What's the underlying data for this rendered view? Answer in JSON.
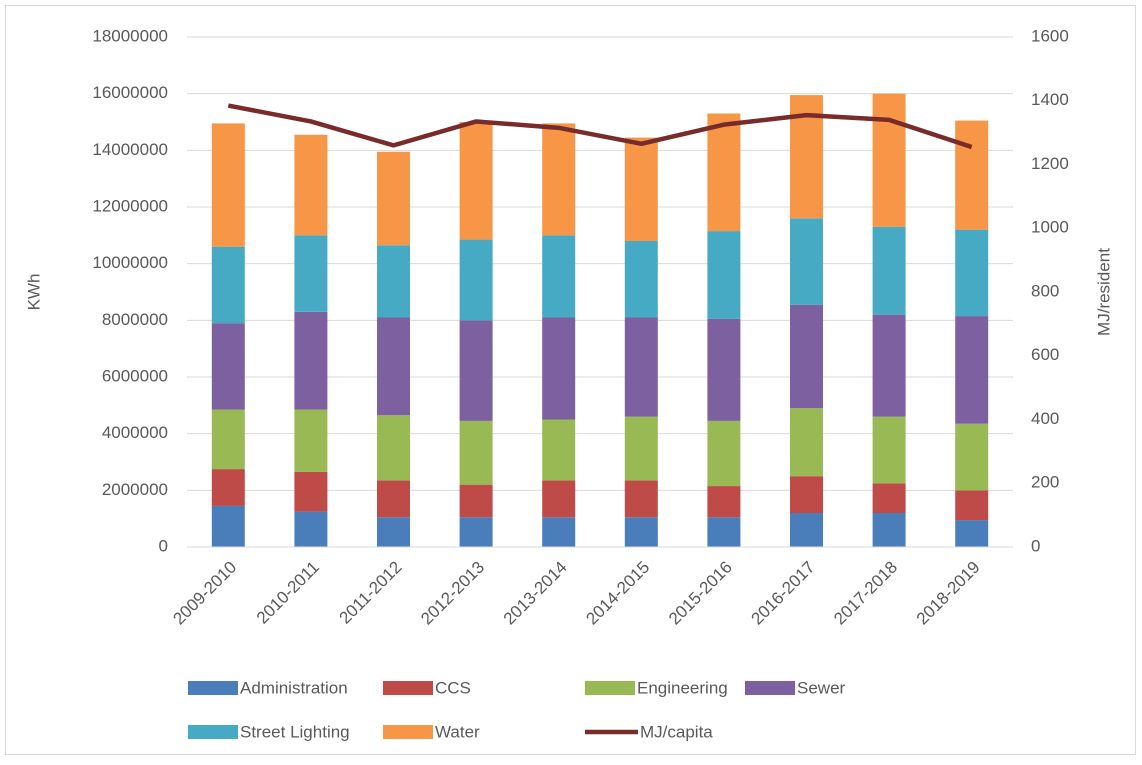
{
  "chart_data": {
    "type": "bar",
    "stacked": true,
    "categories": [
      "2009-2010",
      "2010-2011",
      "2011-2012",
      "2012-2013",
      "2013-2014",
      "2014-2015",
      "2015-2016",
      "2016-2017",
      "2017-2018",
      "2018-2019"
    ],
    "series": [
      {
        "name": "Administration",
        "color": "#4a7ebb",
        "values": [
          1450000,
          1250000,
          1050000,
          1050000,
          1050000,
          1050000,
          1050000,
          1200000,
          1200000,
          950000
        ]
      },
      {
        "name": "CCS",
        "color": "#be4b48",
        "values": [
          1300000,
          1400000,
          1300000,
          1150000,
          1300000,
          1300000,
          1100000,
          1300000,
          1050000,
          1050000
        ]
      },
      {
        "name": "Engineering",
        "color": "#98b954",
        "values": [
          2100000,
          2200000,
          2300000,
          2250000,
          2150000,
          2250000,
          2300000,
          2400000,
          2350000,
          2350000
        ]
      },
      {
        "name": "Sewer",
        "color": "#7d60a0",
        "values": [
          3050000,
          3450000,
          3450000,
          3550000,
          3600000,
          3500000,
          3600000,
          3650000,
          3600000,
          3800000
        ]
      },
      {
        "name": "Street Lighting",
        "color": "#46aac5",
        "values": [
          2700000,
          2700000,
          2550000,
          2850000,
          2900000,
          2700000,
          3100000,
          3050000,
          3100000,
          3050000
        ]
      },
      {
        "name": "Water",
        "color": "#f79646",
        "values": [
          4350000,
          3550000,
          3300000,
          4150000,
          3950000,
          3650000,
          4150000,
          4350000,
          4700000,
          3850000
        ]
      },
      {
        "name": "MJ/capita",
        "color": "#772c2a",
        "type": "line",
        "axis": "y2",
        "values": [
          1385,
          1335,
          1260,
          1335,
          1315,
          1265,
          1325,
          1355,
          1340,
          1255
        ]
      }
    ],
    "ylabel": "KWh",
    "y2label": "MJ/resident",
    "ylim": [
      0,
      18000000
    ],
    "yticks": [
      0,
      2000000,
      4000000,
      6000000,
      8000000,
      10000000,
      12000000,
      14000000,
      16000000,
      18000000
    ],
    "y2lim": [
      0,
      1600
    ],
    "y2ticks": [
      0,
      200,
      400,
      600,
      800,
      1000,
      1200,
      1400,
      1600
    ],
    "grid": true,
    "legend": "bottom"
  }
}
